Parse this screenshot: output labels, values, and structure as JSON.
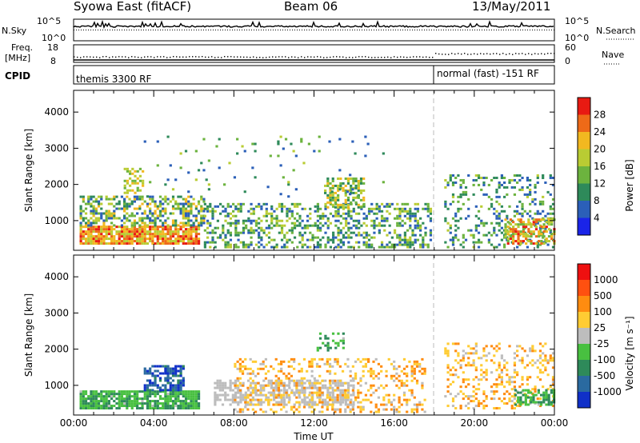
{
  "header": {
    "station": "Syowa East (fitACF)",
    "beam": "Beam 06",
    "date": "13/May/2011"
  },
  "top_panels": {
    "nsky_label": "N.Sky",
    "nsky_ticks": [
      "10^5",
      "10^0"
    ],
    "nsky_right_ticks": [
      "10^5",
      "10^0"
    ],
    "nsearch_label": "N.Search",
    "freq_label": "Freq.",
    "freq_unit": "[MHz]",
    "freq_ticks": [
      "18",
      "8"
    ],
    "nave_ticks": [
      "60",
      "0"
    ],
    "nave_label": "Nave",
    "cpid_label": "CPID",
    "cpid_segments": [
      {
        "label": "themis 3300 RF",
        "start_hour": 0,
        "end_hour": 18
      },
      {
        "label": "normal (fast) -151 RF",
        "start_hour": 18,
        "end_hour": 24
      }
    ]
  },
  "chart_data": [
    {
      "type": "heatmap",
      "title": "",
      "quantity": "Power",
      "xlabel": "",
      "ylabel": "Slant Range [km]",
      "xlim": [
        0,
        24
      ],
      "ylim": [
        180,
        4600
      ],
      "y_ticks": [
        "1000",
        "2000",
        "3000",
        "4000"
      ],
      "colorbar_label": "Power [dB]",
      "colorbar_ticks": [
        "4",
        "8",
        "12",
        "16",
        "20",
        "24",
        "28"
      ],
      "colorbar_colors": [
        "#1a24e8",
        "#2b5fb8",
        "#2e8a5a",
        "#6cb33e",
        "#b9cc33",
        "#f2b820",
        "#ee6a18",
        "#e81a12"
      ],
      "colorbar_range": [
        0,
        30
      ],
      "bands": [
        {
          "start": 0.3,
          "end": 6.3,
          "low": 400,
          "high": 900,
          "density": 0.85,
          "min": 16,
          "max": 28
        },
        {
          "start": 0.3,
          "end": 6.5,
          "low": 900,
          "high": 1700,
          "density": 0.5,
          "min": 4,
          "max": 22
        },
        {
          "start": 6.5,
          "end": 17.8,
          "low": 300,
          "high": 1500,
          "density": 0.4,
          "min": 4,
          "max": 18
        },
        {
          "start": 12.5,
          "end": 14.5,
          "low": 1400,
          "high": 2200,
          "density": 0.5,
          "min": 8,
          "max": 22
        },
        {
          "start": 2.5,
          "end": 3.5,
          "low": 1800,
          "high": 2500,
          "density": 0.4,
          "min": 12,
          "max": 22
        },
        {
          "start": 3.5,
          "end": 15.5,
          "low": 1700,
          "high": 3400,
          "density": 0.03,
          "min": 4,
          "max": 16
        },
        {
          "start": 18.5,
          "end": 24,
          "low": 300,
          "high": 2300,
          "density": 0.25,
          "min": 4,
          "max": 16
        },
        {
          "start": 21.5,
          "end": 24,
          "low": 400,
          "high": 1100,
          "density": 0.6,
          "min": 12,
          "max": 28
        }
      ]
    },
    {
      "type": "heatmap",
      "title": "",
      "quantity": "Velocity",
      "xlabel": "Time UT",
      "ylabel": "Slant Range [km]",
      "xlim": [
        0,
        24
      ],
      "ylim": [
        180,
        4600
      ],
      "x_ticks": [
        "00:00",
        "04:00",
        "08:00",
        "12:00",
        "16:00",
        "20:00",
        "00:00"
      ],
      "y_ticks": [
        "1000",
        "2000",
        "3000",
        "4000"
      ],
      "colorbar_label": "Velocity [m s⁻¹]",
      "colorbar_ticks": [
        "1000",
        "500",
        "100",
        "25",
        "-25",
        "-100",
        "-500",
        "-1000"
      ],
      "colorbar_colors": [
        "#1030c8",
        "#2a6aa0",
        "#2e8a5a",
        "#48c040",
        "#bdbdbd",
        "#ffcc33",
        "#ff8c10",
        "#ff5010",
        "#ee1010"
      ],
      "colorbar_range": [
        -1000,
        1000
      ],
      "bands": [
        {
          "start": 0.3,
          "end": 6.3,
          "low": 400,
          "high": 900,
          "density": 0.85,
          "min": -500,
          "max": -100
        },
        {
          "start": 3.5,
          "end": 5.5,
          "low": 900,
          "high": 1600,
          "density": 0.6,
          "min": -1000,
          "max": -500
        },
        {
          "start": 7.0,
          "end": 14.0,
          "low": 500,
          "high": 1200,
          "density": 0.55,
          "min": -25,
          "max": 25
        },
        {
          "start": 8.0,
          "end": 17.5,
          "low": 300,
          "high": 1800,
          "density": 0.3,
          "min": 25,
          "max": 500
        },
        {
          "start": 12.0,
          "end": 13.5,
          "low": 2000,
          "high": 2500,
          "density": 0.3,
          "min": -500,
          "max": -100
        },
        {
          "start": 18.5,
          "end": 24,
          "low": 400,
          "high": 2200,
          "density": 0.25,
          "min": 25,
          "max": 500
        },
        {
          "start": 22.0,
          "end": 24,
          "low": 500,
          "high": 900,
          "density": 0.6,
          "min": -500,
          "max": -100
        }
      ]
    }
  ]
}
